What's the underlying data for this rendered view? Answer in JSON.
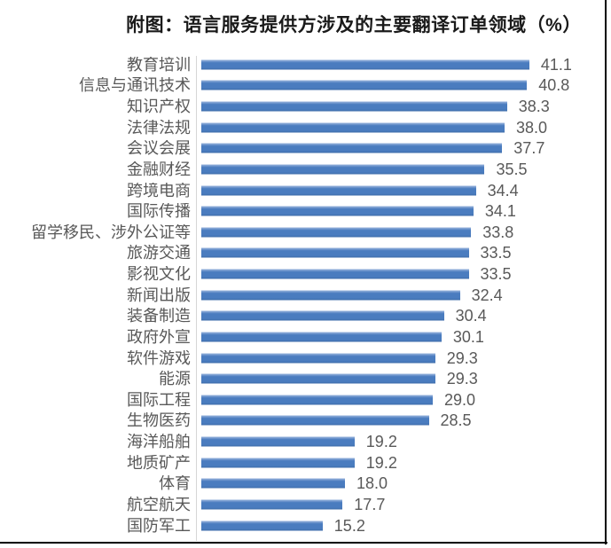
{
  "chart_data": {
    "type": "bar",
    "orientation": "horizontal",
    "title": "附图：语言服务提供方涉及的主要翻译订单领域（%）",
    "categories": [
      "教育培训",
      "信息与通讯技术",
      "知识产权",
      "法律法规",
      "会议会展",
      "金融财经",
      "跨境电商",
      "国际传播",
      "留学移民、涉外公证等",
      "旅游交通",
      "影视文化",
      "新闻出版",
      "装备制造",
      "政府外宣",
      "软件游戏",
      "能源",
      "国际工程",
      "生物医药",
      "海洋船舶",
      "地质矿产",
      "体育",
      "航空航天",
      "国防军工"
    ],
    "values": [
      41.1,
      40.8,
      38.3,
      38.0,
      37.7,
      35.5,
      34.4,
      34.1,
      33.8,
      33.5,
      33.5,
      32.4,
      30.4,
      30.1,
      29.3,
      29.3,
      29.0,
      28.5,
      19.2,
      19.2,
      18.0,
      17.7,
      15.2
    ],
    "xlabel": "",
    "ylabel": "",
    "xlim": [
      0,
      45
    ],
    "value_decimals": 1,
    "grid": false,
    "legend": "none",
    "bar_color": "#4A7CBF",
    "axis_line_color": "#D6D6D6",
    "text_color": "#595959",
    "title_color": "#1A1A1A",
    "frame_border_color": "#000000"
  }
}
